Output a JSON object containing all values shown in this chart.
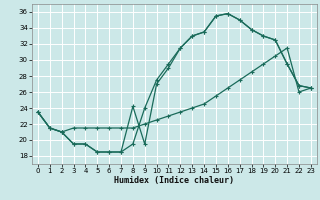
{
  "xlabel": "Humidex (Indice chaleur)",
  "bg_color": "#cce8e8",
  "grid_color": "#ffffff",
  "line_color": "#1a6b5a",
  "xlim": [
    -0.5,
    23.5
  ],
  "ylim": [
    17.0,
    37.0
  ],
  "xticks": [
    0,
    1,
    2,
    3,
    4,
    5,
    6,
    7,
    8,
    9,
    10,
    11,
    12,
    13,
    14,
    15,
    16,
    17,
    18,
    19,
    20,
    21,
    22,
    23
  ],
  "yticks": [
    18,
    20,
    22,
    24,
    26,
    28,
    30,
    32,
    34,
    36
  ],
  "line1_x": [
    0,
    1,
    2,
    3,
    4,
    5,
    6,
    7,
    8,
    9,
    10,
    11,
    12,
    13,
    14,
    15,
    16,
    17,
    18,
    19,
    20,
    21,
    22,
    23
  ],
  "line1_y": [
    23.5,
    21.5,
    21.0,
    19.5,
    19.5,
    18.5,
    18.5,
    18.5,
    19.5,
    24.0,
    27.5,
    29.5,
    31.5,
    33.0,
    33.5,
    35.5,
    35.8,
    35.0,
    33.8,
    33.0,
    32.5,
    29.5,
    26.8,
    26.5
  ],
  "line2_x": [
    0,
    1,
    2,
    3,
    4,
    5,
    6,
    7,
    8,
    9,
    10,
    11,
    12,
    13,
    14,
    15,
    16,
    17,
    18,
    19,
    20,
    21,
    22,
    23
  ],
  "line2_y": [
    23.5,
    21.5,
    21.0,
    19.5,
    19.5,
    18.5,
    18.5,
    18.5,
    24.2,
    19.5,
    27.0,
    29.0,
    31.5,
    33.0,
    33.5,
    35.5,
    35.8,
    35.0,
    33.8,
    33.0,
    32.5,
    29.5,
    26.8,
    26.5
  ],
  "line3_x": [
    0,
    1,
    2,
    3,
    4,
    5,
    6,
    7,
    8,
    9,
    10,
    11,
    12,
    13,
    14,
    15,
    16,
    17,
    18,
    19,
    20,
    21,
    22,
    23
  ],
  "line3_y": [
    23.5,
    21.5,
    21.0,
    21.5,
    21.5,
    21.5,
    21.5,
    21.5,
    21.5,
    22.0,
    22.5,
    23.0,
    23.5,
    24.0,
    24.5,
    25.5,
    26.5,
    27.5,
    28.5,
    29.5,
    30.5,
    31.5,
    26.0,
    26.5
  ]
}
